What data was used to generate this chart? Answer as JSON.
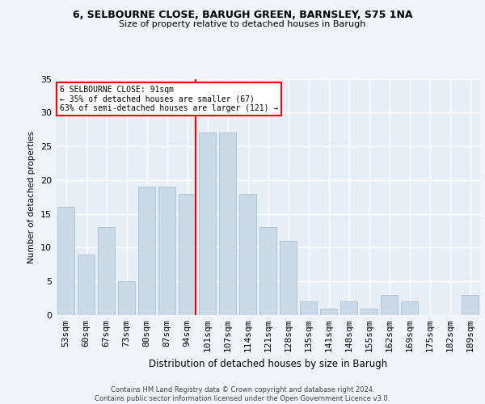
{
  "title1": "6, SELBOURNE CLOSE, BARUGH GREEN, BARNSLEY, S75 1NA",
  "title2": "Size of property relative to detached houses in Barugh",
  "xlabel": "Distribution of detached houses by size in Barugh",
  "ylabel": "Number of detached properties",
  "categories": [
    "53sqm",
    "60sqm",
    "67sqm",
    "73sqm",
    "80sqm",
    "87sqm",
    "94sqm",
    "101sqm",
    "107sqm",
    "114sqm",
    "121sqm",
    "128sqm",
    "135sqm",
    "141sqm",
    "148sqm",
    "155sqm",
    "162sqm",
    "169sqm",
    "175sqm",
    "182sqm",
    "189sqm"
  ],
  "values": [
    16,
    9,
    13,
    5,
    19,
    19,
    18,
    27,
    27,
    18,
    13,
    11,
    2,
    1,
    2,
    1,
    3,
    2,
    0,
    0,
    3
  ],
  "bar_color": "#c9d9e8",
  "bar_edge_color": "#a0b8d0",
  "vline_x_index": 6,
  "vline_color": "red",
  "ylim": [
    0,
    35
  ],
  "yticks": [
    0,
    5,
    10,
    15,
    20,
    25,
    30,
    35
  ],
  "annotation_box_text": "6 SELBOURNE CLOSE: 91sqm\n← 35% of detached houses are smaller (67)\n63% of semi-detached houses are larger (121) →",
  "annotation_box_color": "#ffffff",
  "annotation_box_edge_color": "red",
  "footer_text": "Contains HM Land Registry data © Crown copyright and database right 2024.\nContains public sector information licensed under the Open Government Licence v3.0.",
  "fig_background_color": "#f0f4f8",
  "background_color": "#e8eef5",
  "grid_color": "#ffffff"
}
